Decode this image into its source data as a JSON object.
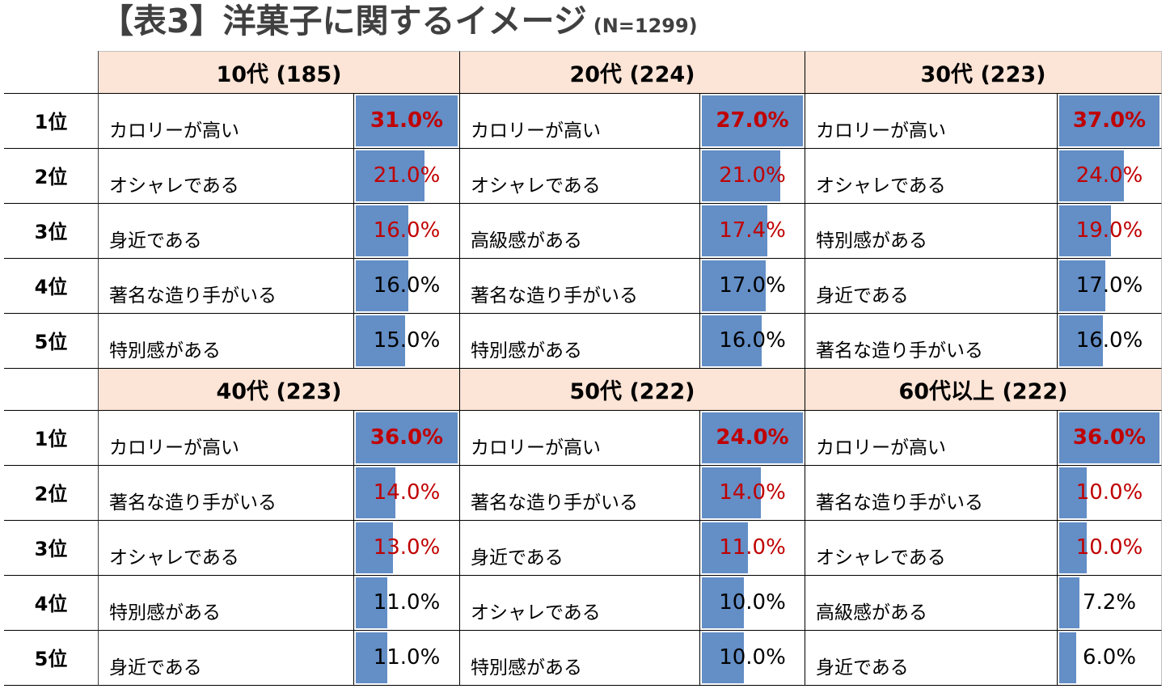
{
  "colors": {
    "title": "#404040",
    "header_fill": "#FCE4D6",
    "bar": "#638EC6",
    "emphasis": "#C00000"
  },
  "chart_data": {
    "type": "table",
    "title": "【表3】洋菓子に関するイメージ",
    "subtitle": "(N=1299)",
    "ranks": [
      "1位",
      "2位",
      "3位",
      "4位",
      "5位"
    ],
    "groups": [
      {
        "header": "10代 (185)",
        "items": [
          {
            "label": "カロリーが高い",
            "value": 31.0,
            "display": "31.0%"
          },
          {
            "label": "オシャレである",
            "value": 21.0,
            "display": "21.0%"
          },
          {
            "label": "身近である",
            "value": 16.0,
            "display": "16.0%"
          },
          {
            "label": "著名な造り手がいる",
            "value": 16.0,
            "display": "16.0%"
          },
          {
            "label": "特別感がある",
            "value": 15.0,
            "display": "15.0%"
          }
        ]
      },
      {
        "header": "20代 (224)",
        "items": [
          {
            "label": "カロリーが高い",
            "value": 27.0,
            "display": "27.0%"
          },
          {
            "label": "オシャレである",
            "value": 21.0,
            "display": "21.0%"
          },
          {
            "label": "高級感がある",
            "value": 17.4,
            "display": "17.4%"
          },
          {
            "label": "著名な造り手がいる",
            "value": 17.0,
            "display": "17.0%"
          },
          {
            "label": "特別感がある",
            "value": 16.0,
            "display": "16.0%"
          }
        ]
      },
      {
        "header": "30代 (223)",
        "items": [
          {
            "label": "カロリーが高い",
            "value": 37.0,
            "display": "37.0%"
          },
          {
            "label": "オシャレである",
            "value": 24.0,
            "display": "24.0%"
          },
          {
            "label": "特別感がある",
            "value": 19.0,
            "display": "19.0%"
          },
          {
            "label": "身近である",
            "value": 17.0,
            "display": "17.0%"
          },
          {
            "label": "著名な造り手がいる",
            "value": 16.0,
            "display": "16.0%"
          }
        ]
      },
      {
        "header": "40代 (223)",
        "items": [
          {
            "label": "カロリーが高い",
            "value": 36.0,
            "display": "36.0%"
          },
          {
            "label": "著名な造り手がいる",
            "value": 14.0,
            "display": "14.0%"
          },
          {
            "label": "オシャレである",
            "value": 13.0,
            "display": "13.0%"
          },
          {
            "label": "特別感がある",
            "value": 11.0,
            "display": "11.0%"
          },
          {
            "label": "身近である",
            "value": 11.0,
            "display": "11.0%"
          }
        ]
      },
      {
        "header": "50代 (222)",
        "items": [
          {
            "label": "カロリーが高い",
            "value": 24.0,
            "display": "24.0%"
          },
          {
            "label": "著名な造り手がいる",
            "value": 14.0,
            "display": "14.0%"
          },
          {
            "label": "身近である",
            "value": 11.0,
            "display": "11.0%"
          },
          {
            "label": "オシャレである",
            "value": 10.0,
            "display": "10.0%"
          },
          {
            "label": "特別感がある",
            "value": 10.0,
            "display": "10.0%"
          }
        ]
      },
      {
        "header": "60代以上 (222)",
        "items": [
          {
            "label": "カロリーが高い",
            "value": 36.0,
            "display": "36.0%"
          },
          {
            "label": "著名な造り手がいる",
            "value": 10.0,
            "display": "10.0%"
          },
          {
            "label": "オシャレである",
            "value": 10.0,
            "display": "10.0%"
          },
          {
            "label": "高級感がある",
            "value": 7.2,
            "display": "7.2%"
          },
          {
            "label": "身近である",
            "value": 6.0,
            "display": "6.0%"
          }
        ]
      }
    ]
  }
}
